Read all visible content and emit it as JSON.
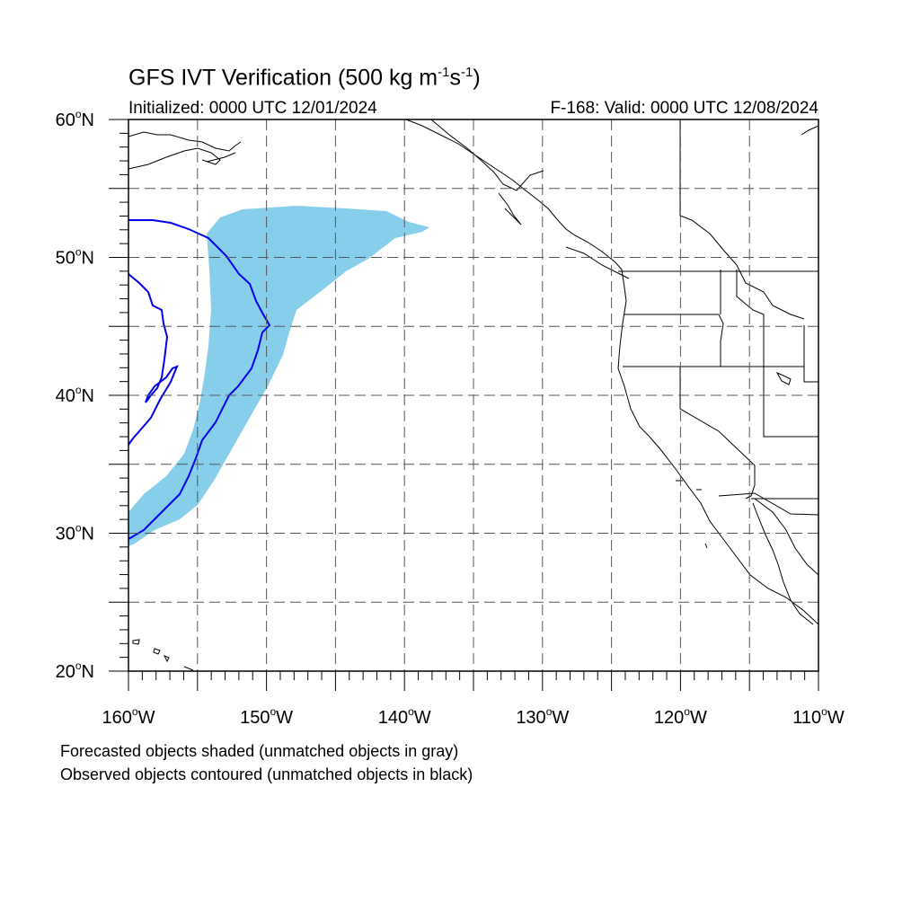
{
  "title": {
    "main": "GFS IVT Verification (500 kg m",
    "exp1": "-1",
    "mid": "s",
    "exp2": "-1",
    "end": ")"
  },
  "subtitle": {
    "initialized": "Initialized: 0000 UTC 12/01/2024",
    "valid": "F-168: Valid: 0000 UTC 12/08/2024"
  },
  "map": {
    "lon_range": [
      -160,
      -110
    ],
    "lat_range": [
      20,
      60
    ],
    "lat_labels": [
      {
        "lat": 60,
        "text": "60",
        "suffix": "N"
      },
      {
        "lat": 50,
        "text": "50",
        "suffix": "N"
      },
      {
        "lat": 40,
        "text": "40",
        "suffix": "N"
      },
      {
        "lat": 30,
        "text": "30",
        "suffix": "N"
      },
      {
        "lat": 20,
        "text": "20",
        "suffix": "N"
      }
    ],
    "lon_labels": [
      {
        "lon": -160,
        "text": "160",
        "suffix": "W"
      },
      {
        "lon": -150,
        "text": "150",
        "suffix": "W"
      },
      {
        "lon": -140,
        "text": "140",
        "suffix": "W"
      },
      {
        "lon": -130,
        "text": "130",
        "suffix": "W"
      },
      {
        "lon": -120,
        "text": "120",
        "suffix": "W"
      },
      {
        "lon": -110,
        "text": "110",
        "suffix": "W"
      }
    ],
    "grid_lons": [
      -155,
      -150,
      -145,
      -140,
      -135,
      -130,
      -125,
      -120,
      -115
    ],
    "grid_lats": [
      25,
      30,
      35,
      40,
      45,
      50,
      55
    ],
    "forecast_fill_color": "#87ceeb",
    "observed_contour_color": "#0000ee",
    "coast_color": "#000000"
  },
  "notes": {
    "line1": "Forecasted objects shaded (unmatched objects in gray)",
    "line2": "Observed objects contoured (unmatched objects in black)"
  }
}
